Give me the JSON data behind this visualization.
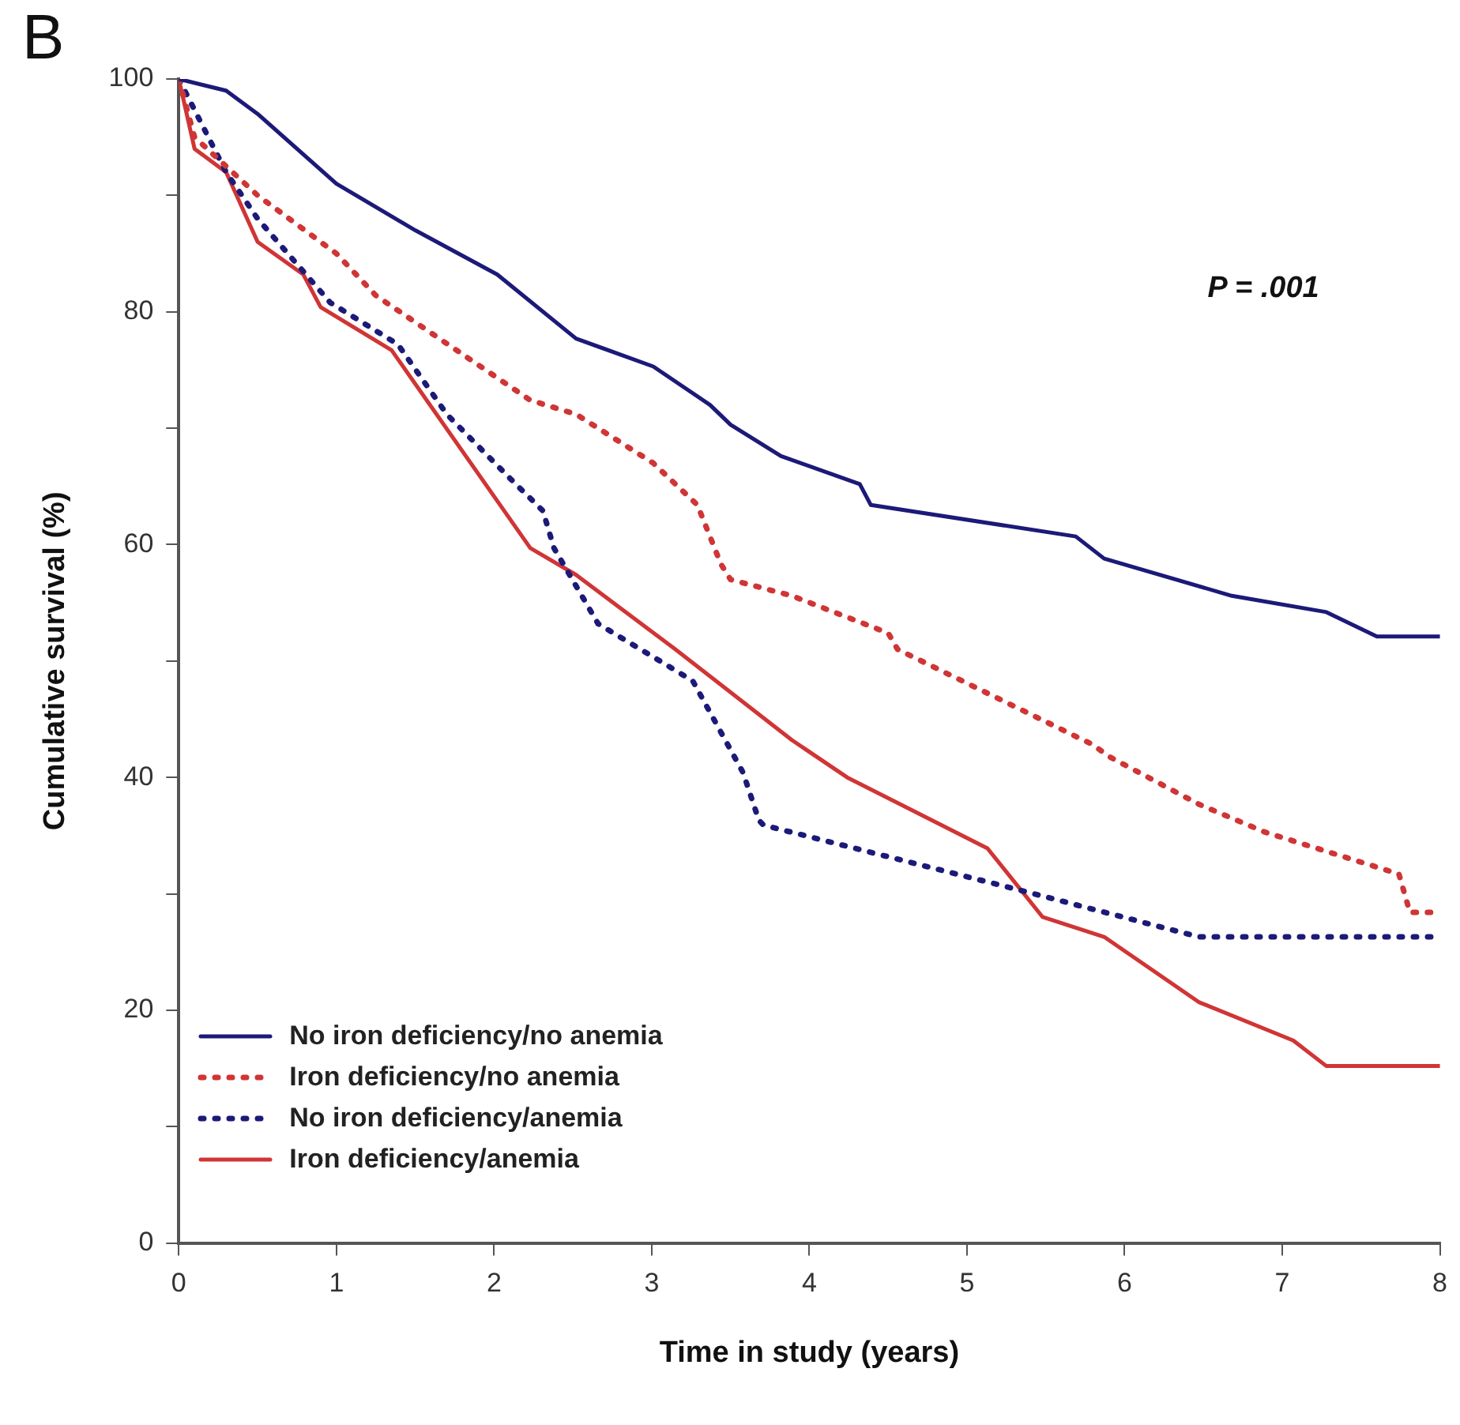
{
  "chart_data": {
    "type": "line",
    "title": "B",
    "xlabel": "Time in study (years)",
    "ylabel": "Cumulative survival (%)",
    "xlim": [
      0,
      8
    ],
    "xticks": [
      0,
      1,
      2,
      3,
      4,
      5,
      6,
      7,
      8
    ],
    "ylim": [
      0,
      100
    ],
    "yticks": [
      0,
      {
        "value": 10,
        "label": null
      },
      20,
      {
        "value": 30,
        "label": null
      },
      40,
      {
        "value": 50,
        "label": null
      },
      60,
      {
        "value": 70,
        "label": null
      },
      80,
      {
        "value": 90,
        "label": null
      },
      100
    ],
    "grid": false,
    "legend": "bottom left",
    "marker": "none",
    "annotations": [
      "P = .001"
    ],
    "series": [
      {
        "name": "No iron deficiency/no anemia",
        "color": "#1c1a78",
        "line_style": "solid",
        "x": [
          0,
          0.3,
          0.5,
          1,
          1.5,
          2.02,
          2.52,
          3.01,
          3.37,
          3.5,
          3.82,
          4.32,
          4.39,
          5.69,
          5.87,
          6.68,
          7.28,
          7.6,
          8
        ],
        "values": [
          100,
          99,
          97,
          91,
          87,
          83.2,
          77.7,
          75.3,
          72,
          70.3,
          67.6,
          65.2,
          63.4,
          60.7,
          58.8,
          55.6,
          54.2,
          52.1,
          52.1
        ]
      },
      {
        "name": "Iron deficiency/no anemia",
        "color": "#d03535",
        "line_style": "dotted",
        "x": [
          0,
          0.1,
          0.5,
          1,
          1.25,
          2.23,
          2.52,
          3.01,
          3.29,
          3.44,
          3.5,
          3.89,
          4.5,
          4.56,
          5.8,
          5.9,
          6.47,
          6.89,
          7.74,
          7.81,
          7.95
        ],
        "values": [
          100,
          95,
          90,
          85,
          81.4,
          72.4,
          71.2,
          67,
          63.4,
          58.3,
          57,
          55.6,
          52.4,
          51,
          42.8,
          41.8,
          37.7,
          35.3,
          31.7,
          28.4,
          28.4
        ]
      },
      {
        "name": "No iron deficiency/anemia",
        "color": "#1c1a78",
        "line_style": "dotted",
        "x": [
          0,
          0.3,
          0.5,
          0.96,
          1.39,
          1.7,
          2.1,
          2.31,
          2.38,
          2.66,
          3.26,
          3.58,
          3.68,
          3.71,
          5.34,
          6.47,
          8
        ],
        "values": [
          100,
          92,
          88,
          80.8,
          77.2,
          71.2,
          65.7,
          62.9,
          59.7,
          53.2,
          48.3,
          40.4,
          36.3,
          35.9,
          30.3,
          26.3,
          26.3
        ]
      },
      {
        "name": "Iron deficiency/anemia",
        "color": "#d03535",
        "line_style": "solid",
        "x": [
          0,
          0.1,
          0.3,
          0.5,
          0.79,
          0.9,
          1.35,
          2.23,
          2.52,
          3.15,
          3.89,
          4.24,
          5.13,
          5.48,
          5.87,
          6.47,
          7.07,
          7.28,
          8
        ],
        "values": [
          100,
          94,
          92,
          86,
          83.2,
          80.4,
          76.7,
          59.7,
          57.4,
          51,
          43.2,
          40,
          33.9,
          28,
          26.3,
          20.7,
          17.4,
          15.2,
          15.2
        ]
      }
    ]
  }
}
